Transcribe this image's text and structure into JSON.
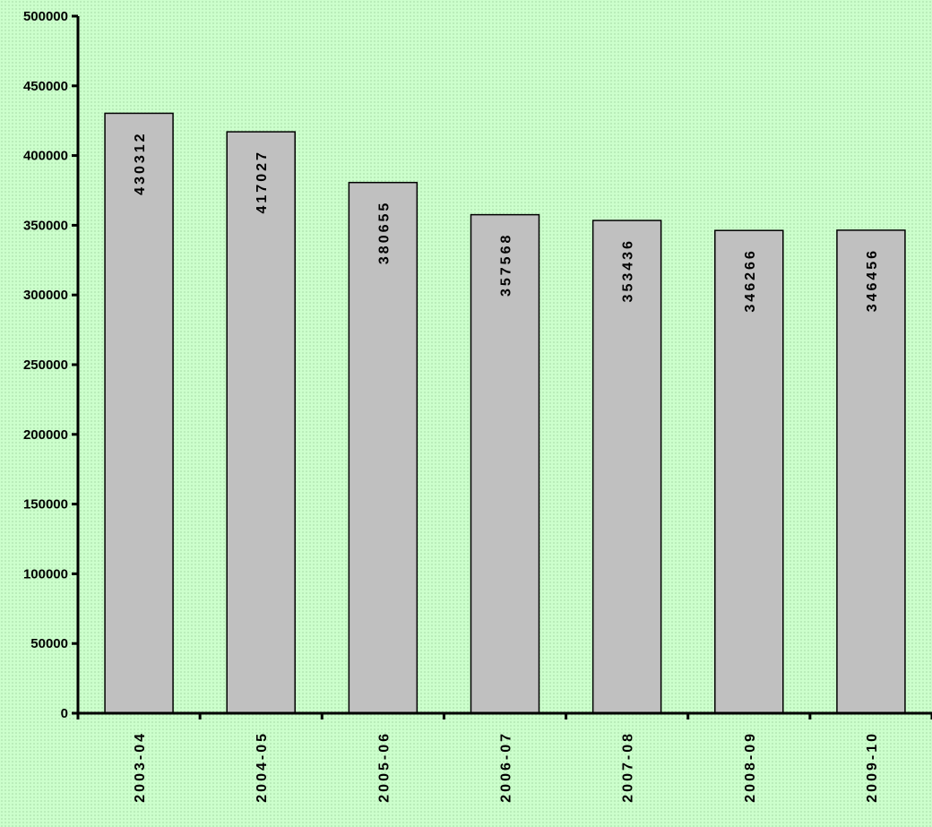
{
  "chart_data": {
    "type": "bar",
    "categories": [
      "2003-04",
      "2004-05",
      "2005-06",
      "2006-07",
      "2007-08",
      "2008-09",
      "2009-10"
    ],
    "values": [
      430312,
      417027,
      380655,
      357568,
      353436,
      346266,
      346456
    ],
    "data_labels": [
      "430312",
      "417027",
      "380655",
      "357568",
      "353436",
      "346266",
      "346456"
    ],
    "title": "",
    "xlabel": "",
    "ylabel": "",
    "ylim": [
      0,
      500000
    ],
    "yticks": [
      0,
      50000,
      100000,
      150000,
      200000,
      250000,
      300000,
      350000,
      400000,
      450000,
      500000
    ],
    "ytick_labels": [
      "0",
      "50000",
      "100000",
      "150000",
      "200000",
      "250000",
      "300000",
      "350000",
      "400000",
      "450000",
      "500000"
    ],
    "grid": false,
    "legend": "none",
    "bar_color": "#c0c0c0",
    "background_color": "#ccffcc"
  }
}
